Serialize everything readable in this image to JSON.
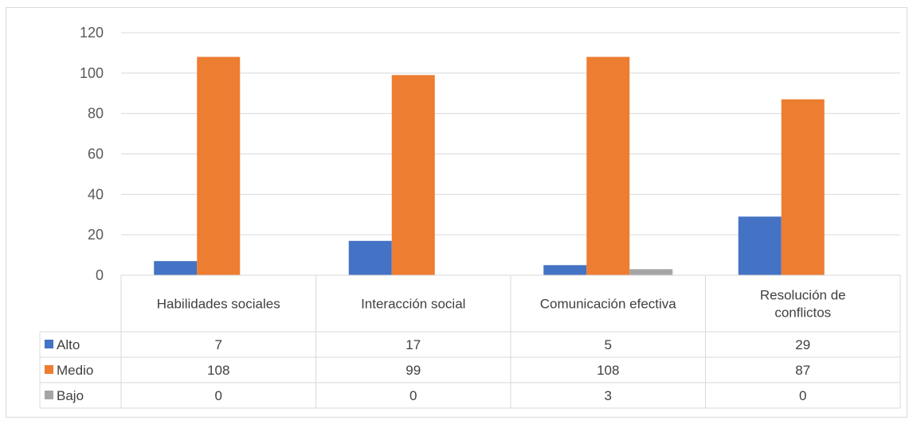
{
  "chart_data": {
    "type": "bar",
    "categories": [
      "Habilidades sociales",
      "Interacción social",
      "Comunicación efectiva",
      "Resolución de conflictos"
    ],
    "series": [
      {
        "name": "Alto",
        "values": [
          7,
          17,
          5,
          29
        ],
        "color": "#4472C4"
      },
      {
        "name": "Medio",
        "values": [
          108,
          99,
          108,
          87
        ],
        "color": "#ED7D31"
      },
      {
        "name": "Bajo",
        "values": [
          0,
          0,
          3,
          0
        ],
        "color": "#A5A5A5"
      }
    ],
    "ylim": [
      0,
      120
    ],
    "yticks": [
      0,
      20,
      40,
      60,
      80,
      100,
      120
    ],
    "grid": true,
    "legend": "data-table",
    "title": "",
    "xlabel": "",
    "ylabel": ""
  }
}
